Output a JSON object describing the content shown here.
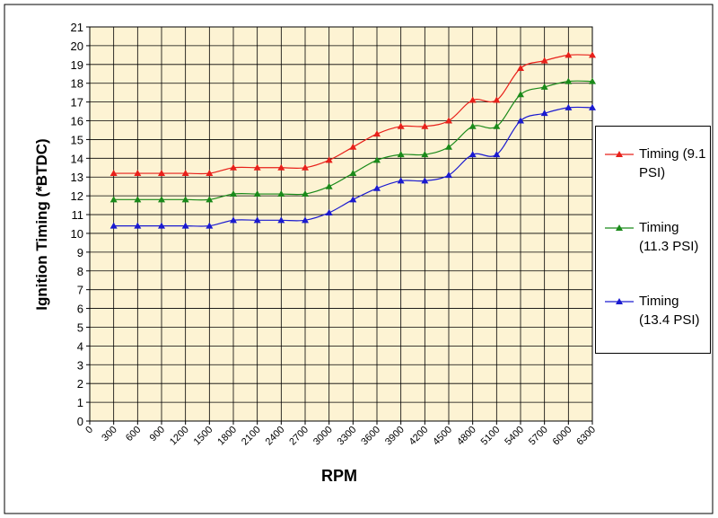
{
  "chart_data": {
    "type": "line",
    "x": [
      300,
      600,
      900,
      1200,
      1500,
      1800,
      2100,
      2400,
      2700,
      3000,
      3300,
      3600,
      3900,
      4200,
      4500,
      4800,
      5100,
      5400,
      5700,
      6000,
      6300
    ],
    "xlim": [
      0,
      6300
    ],
    "xticks": [
      0,
      300,
      600,
      900,
      1200,
      1500,
      1800,
      2100,
      2400,
      2700,
      3000,
      3300,
      3600,
      3900,
      4200,
      4500,
      4800,
      5100,
      5400,
      5700,
      6000,
      6300
    ],
    "ylim": [
      0,
      21
    ],
    "yticks": [
      0,
      1,
      2,
      3,
      4,
      5,
      6,
      7,
      8,
      9,
      10,
      11,
      12,
      13,
      14,
      15,
      16,
      17,
      18,
      19,
      20,
      21
    ],
    "x_label": "RPM",
    "y_label": "Ignition Timing (*BTDC)",
    "grid": true,
    "legend": "right",
    "series": [
      {
        "name": "Timing (9.1 PSI)",
        "color": "#e8201a",
        "values": [
          13.2,
          13.2,
          13.2,
          13.2,
          13.2,
          13.5,
          13.5,
          13.5,
          13.5,
          13.9,
          14.6,
          15.3,
          15.7,
          15.7,
          16.0,
          17.1,
          17.1,
          18.8,
          19.2,
          19.5,
          19.5
        ]
      },
      {
        "name": "Timing (11.3 PSI)",
        "color": "#1a8a1a",
        "values": [
          11.8,
          11.8,
          11.8,
          11.8,
          11.8,
          12.1,
          12.1,
          12.1,
          12.1,
          12.5,
          13.2,
          13.9,
          14.2,
          14.2,
          14.6,
          15.7,
          15.7,
          17.4,
          17.8,
          18.1,
          18.1
        ]
      },
      {
        "name": "Timing (13.4 PSI)",
        "color": "#1a1ad0",
        "values": [
          10.4,
          10.4,
          10.4,
          10.4,
          10.4,
          10.7,
          10.7,
          10.7,
          10.7,
          11.1,
          11.8,
          12.4,
          12.8,
          12.8,
          13.1,
          14.2,
          14.2,
          16.0,
          16.4,
          16.7,
          16.7
        ]
      }
    ]
  }
}
